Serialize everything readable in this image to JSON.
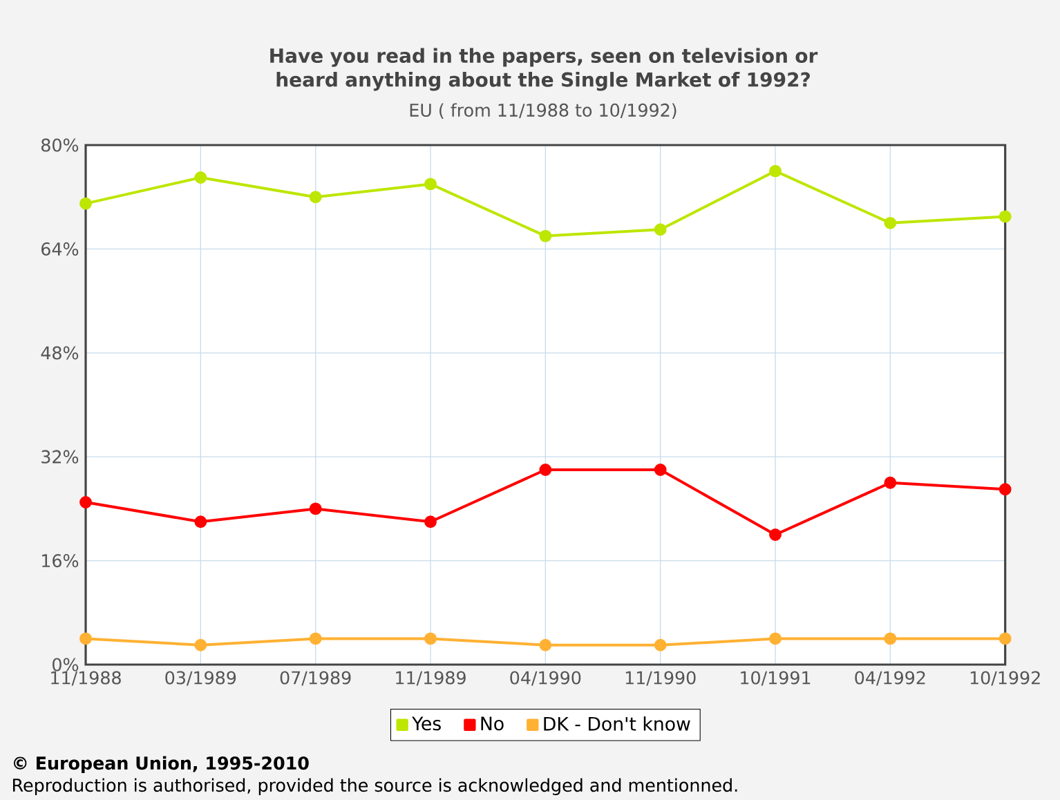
{
  "chart_data": {
    "type": "line",
    "title": "Have you read in the papers, seen on television or heard anything about the Single Market of 1992?",
    "subtitle": "EU ( from 11/1988 to 10/1992)",
    "categories": [
      "11/1988",
      "03/1989",
      "07/1989",
      "11/1989",
      "04/1990",
      "11/1990",
      "10/1991",
      "04/1992",
      "10/1992"
    ],
    "series": [
      {
        "name": "Yes",
        "color": "#bde600",
        "values": [
          71,
          75,
          72,
          74,
          66,
          67,
          76,
          68,
          69
        ]
      },
      {
        "name": "No",
        "color": "#ff0000",
        "values": [
          25,
          22,
          24,
          22,
          30,
          30,
          20,
          28,
          27
        ]
      },
      {
        "name": "DK - Don't know",
        "color": "#ffb133",
        "values": [
          4,
          3,
          4,
          4,
          3,
          3,
          4,
          4,
          4
        ]
      }
    ],
    "ylim": [
      0,
      80
    ],
    "yticks": [
      {
        "value": 0,
        "label": "0%"
      },
      {
        "value": 16,
        "label": "16%"
      },
      {
        "value": 32,
        "label": "32%"
      },
      {
        "value": 48,
        "label": "48%"
      },
      {
        "value": 64,
        "label": "64%"
      },
      {
        "value": 80,
        "label": "80%"
      }
    ],
    "grid": true,
    "legend": "bottom",
    "marker": "circle",
    "line_style": "solid",
    "annotations": [
      "**© European Union, 1995-2010**",
      "Reproduction is authorised, provided the source is acknowledged and mentionned."
    ]
  }
}
